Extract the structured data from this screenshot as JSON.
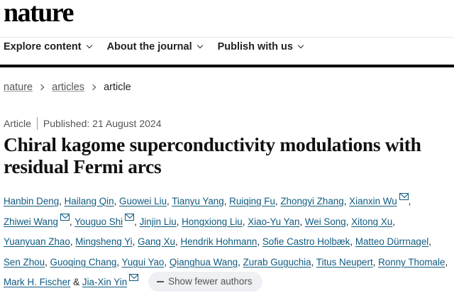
{
  "header": {
    "logo": "nature"
  },
  "nav": [
    {
      "label": "Explore content"
    },
    {
      "label": "About the journal"
    },
    {
      "label": "Publish with us"
    }
  ],
  "breadcrumb": [
    {
      "label": "nature"
    },
    {
      "label": "articles"
    },
    {
      "label": "article"
    }
  ],
  "article": {
    "type": "Article",
    "published": "Published: 21 August 2024",
    "title": "Chiral kagome superconductivity modulations with residual Fermi arcs",
    "authors": [
      {
        "name": "Hanbin Deng"
      },
      {
        "name": "Hailang Qin"
      },
      {
        "name": "Guowei Liu"
      },
      {
        "name": "Tianyu Yang"
      },
      {
        "name": "Ruiqing Fu"
      },
      {
        "name": "Zhongyi Zhang"
      },
      {
        "name": "Xianxin Wu",
        "email": true
      },
      {
        "name": "Zhiwei Wang",
        "email": true
      },
      {
        "name": "Youguo Shi",
        "email": true
      },
      {
        "name": "Jinjin Liu"
      },
      {
        "name": "Hongxiong Liu"
      },
      {
        "name": "Xiao-Yu Yan"
      },
      {
        "name": "Wei Song"
      },
      {
        "name": "Xitong Xu"
      },
      {
        "name": "Yuanyuan Zhao"
      },
      {
        "name": "Mingsheng Yi"
      },
      {
        "name": "Gang Xu"
      },
      {
        "name": "Hendrik Hohmann"
      },
      {
        "name": "Sofie Castro Holbæk"
      },
      {
        "name": "Matteo Dürrnagel"
      },
      {
        "name": "Sen Zhou"
      },
      {
        "name": "Guoqing Chang"
      },
      {
        "name": "Yugui Yao"
      },
      {
        "name": "Qianghua Wang"
      },
      {
        "name": "Zurab Guguchia"
      },
      {
        "name": "Titus Neupert"
      },
      {
        "name": "Ronny Thomale"
      },
      {
        "name": "Mark H. Fischer"
      },
      {
        "name": "Jia-Xin Yin",
        "email": true
      }
    ],
    "and": "&",
    "show_fewer": "Show fewer authors"
  }
}
